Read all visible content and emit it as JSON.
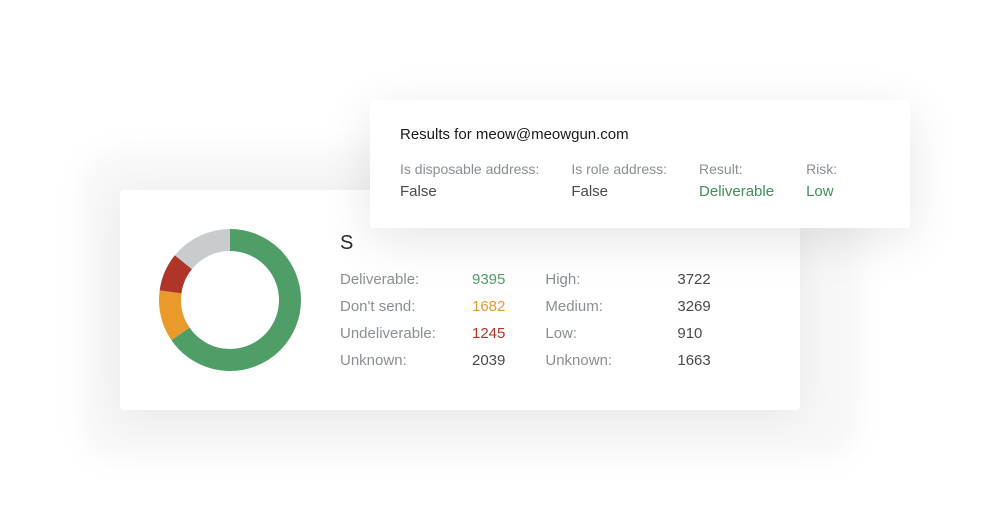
{
  "colors": {
    "green": "#4f9e67",
    "orange": "#e99a2b",
    "red": "#b03529",
    "grey": "#c9ccce",
    "text_muted": "#8a8f94",
    "text": "#4a4a4a",
    "bg": "#ffffff"
  },
  "donut": {
    "type": "donut",
    "thickness": 22,
    "radius": 60,
    "segments": [
      {
        "label": "Deliverable",
        "value": 9395,
        "color": "#4f9e67"
      },
      {
        "label": "Don't send",
        "value": 1682,
        "color": "#e99a2b"
      },
      {
        "label": "Undeliverable",
        "value": 1245,
        "color": "#b03529"
      },
      {
        "label": "Unknown",
        "value": 2039,
        "color": "#c9ccce"
      }
    ]
  },
  "summary": {
    "heading_initial": "S",
    "left": [
      {
        "label": "Deliverable:",
        "value": "9395",
        "color": "#4f9e67"
      },
      {
        "label": "Don't send:",
        "value": "1682",
        "color": "#e99a2b"
      },
      {
        "label": "Undeliverable:",
        "value": "1245",
        "color": "#b03529"
      },
      {
        "label": "Unknown:",
        "value": "2039",
        "color": "#4a4a4a"
      }
    ],
    "right": [
      {
        "label": "High:",
        "value": "3722",
        "color": "#4a4a4a"
      },
      {
        "label": "Medium:",
        "value": "3269",
        "color": "#4a4a4a"
      },
      {
        "label": "Low:",
        "value": "910",
        "color": "#4a4a4a"
      },
      {
        "label": "Unknown:",
        "value": "1663",
        "color": "#4a4a4a"
      }
    ]
  },
  "detail": {
    "title": "Results for meow@meowgun.com",
    "fields": [
      {
        "label": "Is disposable address:",
        "value": "False",
        "color": "#4a4a4a"
      },
      {
        "label": "Is role address:",
        "value": "False",
        "color": "#4a4a4a"
      },
      {
        "label": "Result:",
        "value": "Deliverable",
        "color": "#3f8f57"
      },
      {
        "label": "Risk:",
        "value": "Low",
        "color": "#3f8f57"
      }
    ]
  }
}
